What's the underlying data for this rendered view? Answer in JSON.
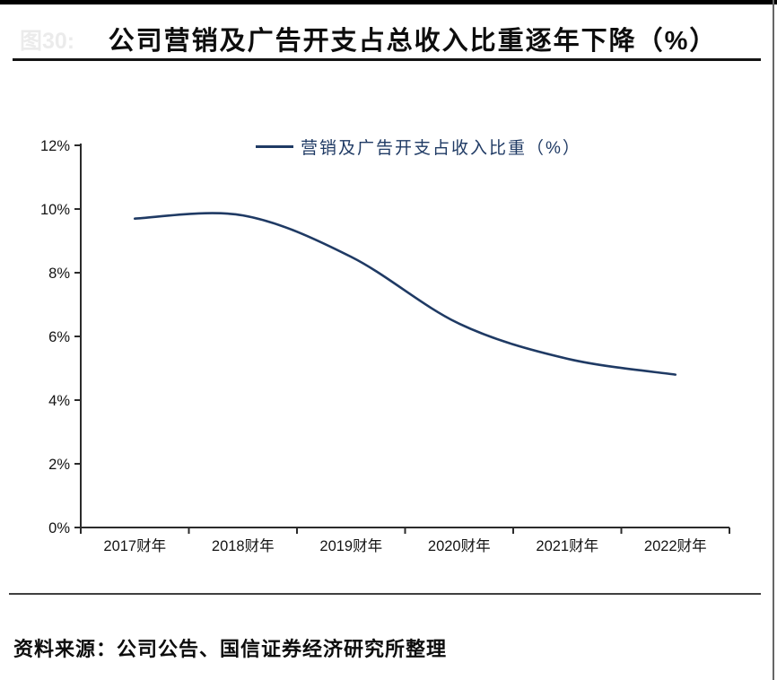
{
  "page": {
    "figure_label_faded": "图30:",
    "title": "公司营销及广告开支占总收入比重逐年下降（%）",
    "source_note": "资料来源：公司公告、国信证券经济研究所整理"
  },
  "colors": {
    "line": "#1f3a64",
    "axis": "#2b2b2b",
    "tick_text": "#141414",
    "top_bar": "#000000",
    "right_border": "#666666"
  },
  "chart_data": {
    "type": "line",
    "title": "公司营销及广告开支占总收入比重逐年下降（%）",
    "categories": [
      "2017财年",
      "2018财年",
      "2019财年",
      "2020财年",
      "2021财年",
      "2022财年"
    ],
    "series": [
      {
        "name": "营销及广告开支占收入比重（%）",
        "values": [
          9.7,
          9.8,
          8.5,
          6.4,
          5.3,
          4.8
        ]
      }
    ],
    "ylim": [
      0,
      12
    ],
    "y_tick_step": 2,
    "y_ticks": [
      "0%",
      "2%",
      "4%",
      "6%",
      "8%",
      "10%",
      "12%"
    ],
    "xlabel": "",
    "ylabel": "",
    "grid": false,
    "smooth": true,
    "legend_position": "top-center",
    "line_color": "#1f3a64"
  }
}
